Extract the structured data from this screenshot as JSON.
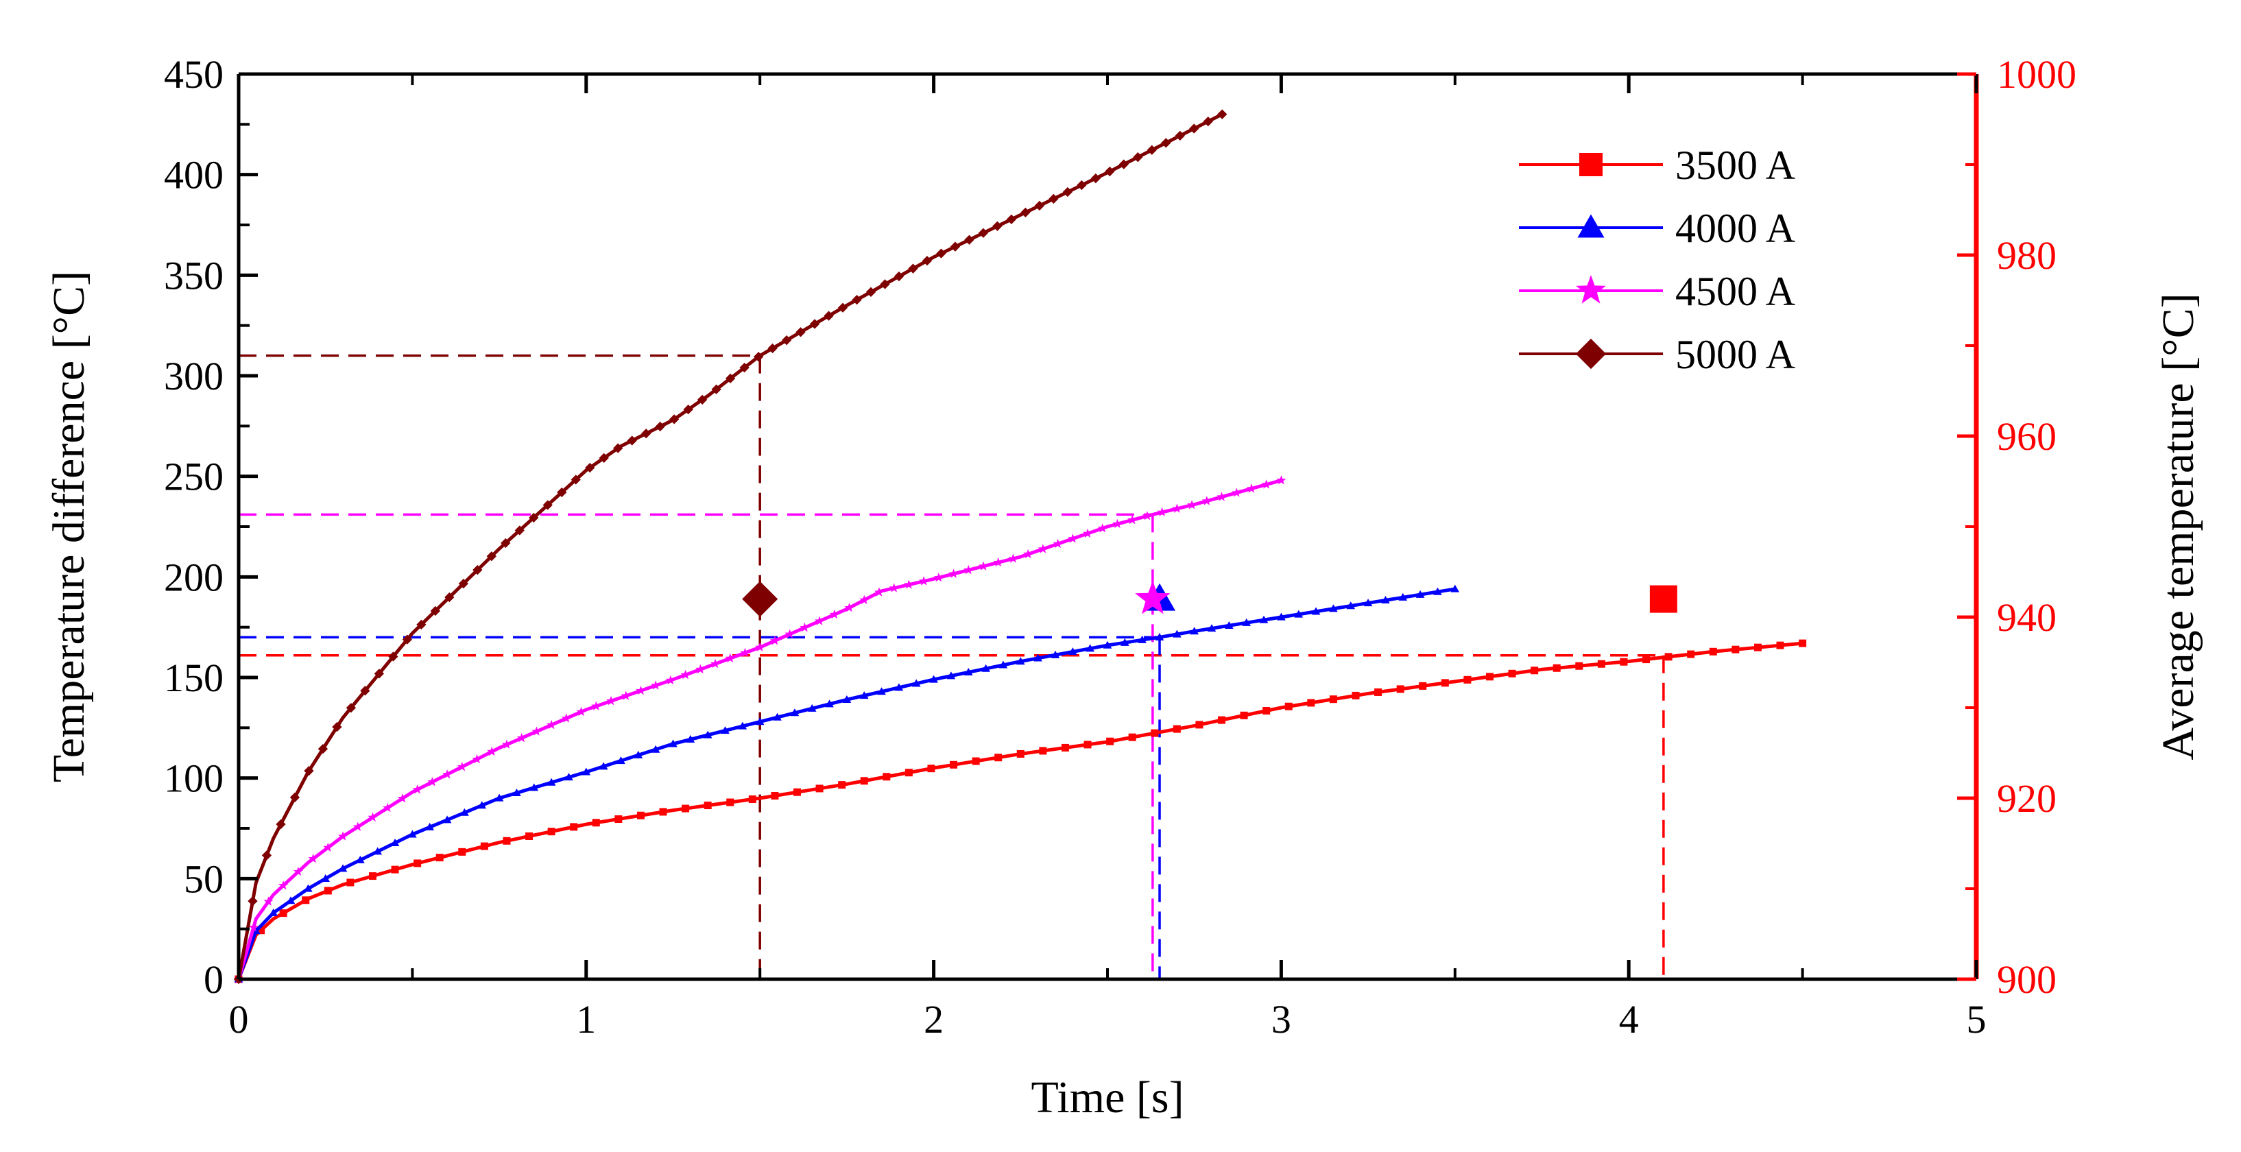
{
  "chart_data": {
    "type": "line",
    "title": "",
    "xlabel": "Time [s]",
    "ylabel": "Temperature  difference [°C]",
    "y2label": "Average temperature [°C]",
    "xlim": [
      0,
      5
    ],
    "ylim": [
      0,
      450
    ],
    "y2lim": [
      900,
      1000
    ],
    "x_ticks": [
      0,
      1,
      2,
      3,
      4,
      5
    ],
    "x_tick_labels": [
      "0",
      "1",
      "2",
      "3",
      "4",
      "5"
    ],
    "y_ticks": [
      0,
      50,
      100,
      150,
      200,
      250,
      300,
      350,
      400,
      450
    ],
    "y_tick_labels": [
      "0",
      "50",
      "100",
      "150",
      "200",
      "250",
      "300",
      "350",
      "400",
      "450"
    ],
    "y2_ticks": [
      900,
      920,
      940,
      960,
      980,
      1000
    ],
    "y2_tick_labels": [
      "900",
      "920",
      "940",
      "960",
      "980",
      "1000"
    ],
    "grid": false,
    "legend_position": "top-right",
    "series": [
      {
        "name": "3500 A",
        "color": "#ff0000",
        "marker": "square",
        "x": [
          0,
          0.05,
          0.1,
          0.2,
          0.3,
          0.5,
          0.75,
          1.0,
          1.25,
          1.5,
          1.75,
          2.0,
          2.25,
          2.5,
          2.75,
          3.0,
          3.25,
          3.5,
          3.75,
          4.0,
          4.1,
          4.25,
          4.5
        ],
        "y": [
          0,
          22,
          30,
          40,
          47,
          57,
          68,
          77,
          84,
          90,
          97,
          105,
          112,
          118,
          126,
          135,
          142,
          148,
          154,
          158,
          160,
          163,
          167
        ],
        "avg_point": {
          "x": 4.1,
          "y2": 942
        },
        "crosshair": {
          "x": 4.1,
          "y": 161
        }
      },
      {
        "name": "4000 A",
        "color": "#0000ff",
        "marker": "triangle",
        "x": [
          0,
          0.05,
          0.1,
          0.2,
          0.3,
          0.5,
          0.75,
          1.0,
          1.25,
          1.5,
          1.75,
          2.0,
          2.25,
          2.5,
          2.65,
          2.75,
          3.0,
          3.25,
          3.5
        ],
        "y": [
          0,
          24,
          33,
          45,
          55,
          72,
          90,
          103,
          117,
          128,
          139,
          149,
          158,
          166,
          170,
          173,
          180,
          187,
          194
        ],
        "avg_point": {
          "x": 2.65,
          "y2": 942
        },
        "crosshair": {
          "x": 2.65,
          "y": 170
        }
      },
      {
        "name": "4500 A",
        "color": "#ff00ff",
        "marker": "star",
        "x": [
          0,
          0.05,
          0.1,
          0.2,
          0.3,
          0.5,
          0.75,
          1.0,
          1.25,
          1.5,
          1.75,
          1.85,
          2.0,
          2.25,
          2.5,
          2.63,
          2.75,
          3.0
        ],
        "y": [
          0,
          30,
          42,
          58,
          71,
          93,
          115,
          134,
          149,
          165,
          184,
          193,
          199,
          210,
          225,
          231,
          236,
          248
        ],
        "avg_point": {
          "x": 2.63,
          "y2": 942
        },
        "crosshair": {
          "x": 2.63,
          "y": 231
        }
      },
      {
        "name": "5000 A",
        "color": "#7f0000",
        "marker": "diamond",
        "x": [
          0,
          0.05,
          0.1,
          0.2,
          0.3,
          0.5,
          0.75,
          1.0,
          1.1,
          1.25,
          1.35,
          1.5,
          1.75,
          2.0,
          2.25,
          2.5,
          2.83
        ],
        "y": [
          0,
          48,
          70,
          103,
          130,
          172,
          214,
          253,
          265,
          278,
          290,
          310,
          335,
          359,
          380,
          401,
          430
        ],
        "avg_point": {
          "x": 1.5,
          "y2": 942
        },
        "crosshair": {
          "x": 1.5,
          "y": 310
        }
      }
    ]
  }
}
